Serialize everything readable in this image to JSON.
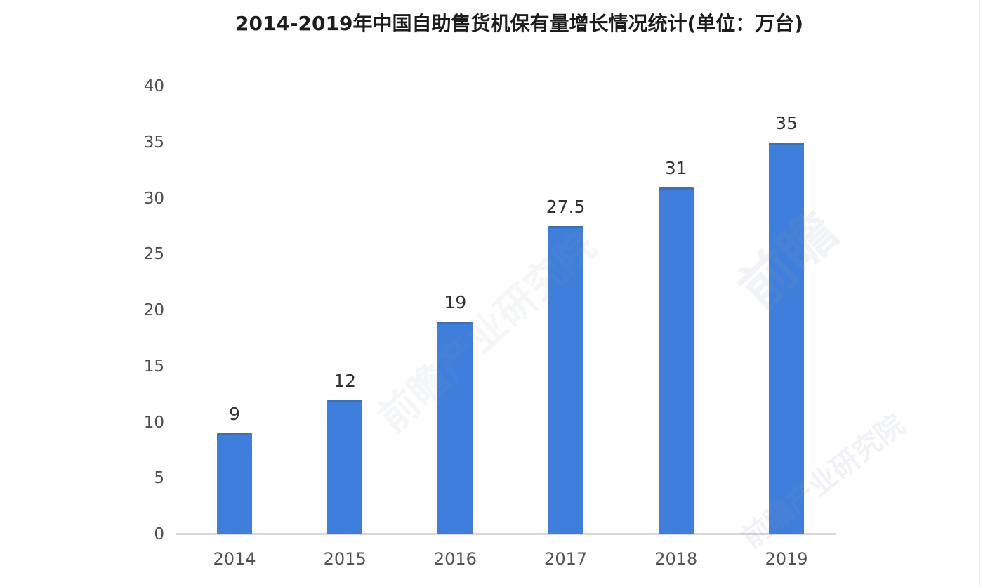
{
  "chart_data": {
    "type": "bar",
    "title": "2014-2019年中国自助售货机保有量增长情况统计(单位：万台)",
    "categories": [
      "2014",
      "2015",
      "2016",
      "2017",
      "2018",
      "2019"
    ],
    "values": [
      9,
      12,
      19,
      27.5,
      31,
      35
    ],
    "value_labels": [
      "9",
      "12",
      "19",
      "27.5",
      "31",
      "35"
    ],
    "xlabel": "",
    "ylabel": "",
    "ylim": [
      0,
      40
    ],
    "yticks": [
      0,
      5,
      10,
      15,
      20,
      25,
      30,
      35,
      40
    ],
    "grid": "off",
    "legend": "none",
    "bar_color": "#3f7eda",
    "axis_line_color": "#d8d8d8",
    "title_color": "#1d1d1d",
    "tick_label_color": "#4d4d4d"
  },
  "watermarks": [
    {
      "text": "前瞻"
    },
    {
      "text": "前瞻产业研究院"
    },
    {
      "text": "前瞻产业研究院"
    }
  ]
}
